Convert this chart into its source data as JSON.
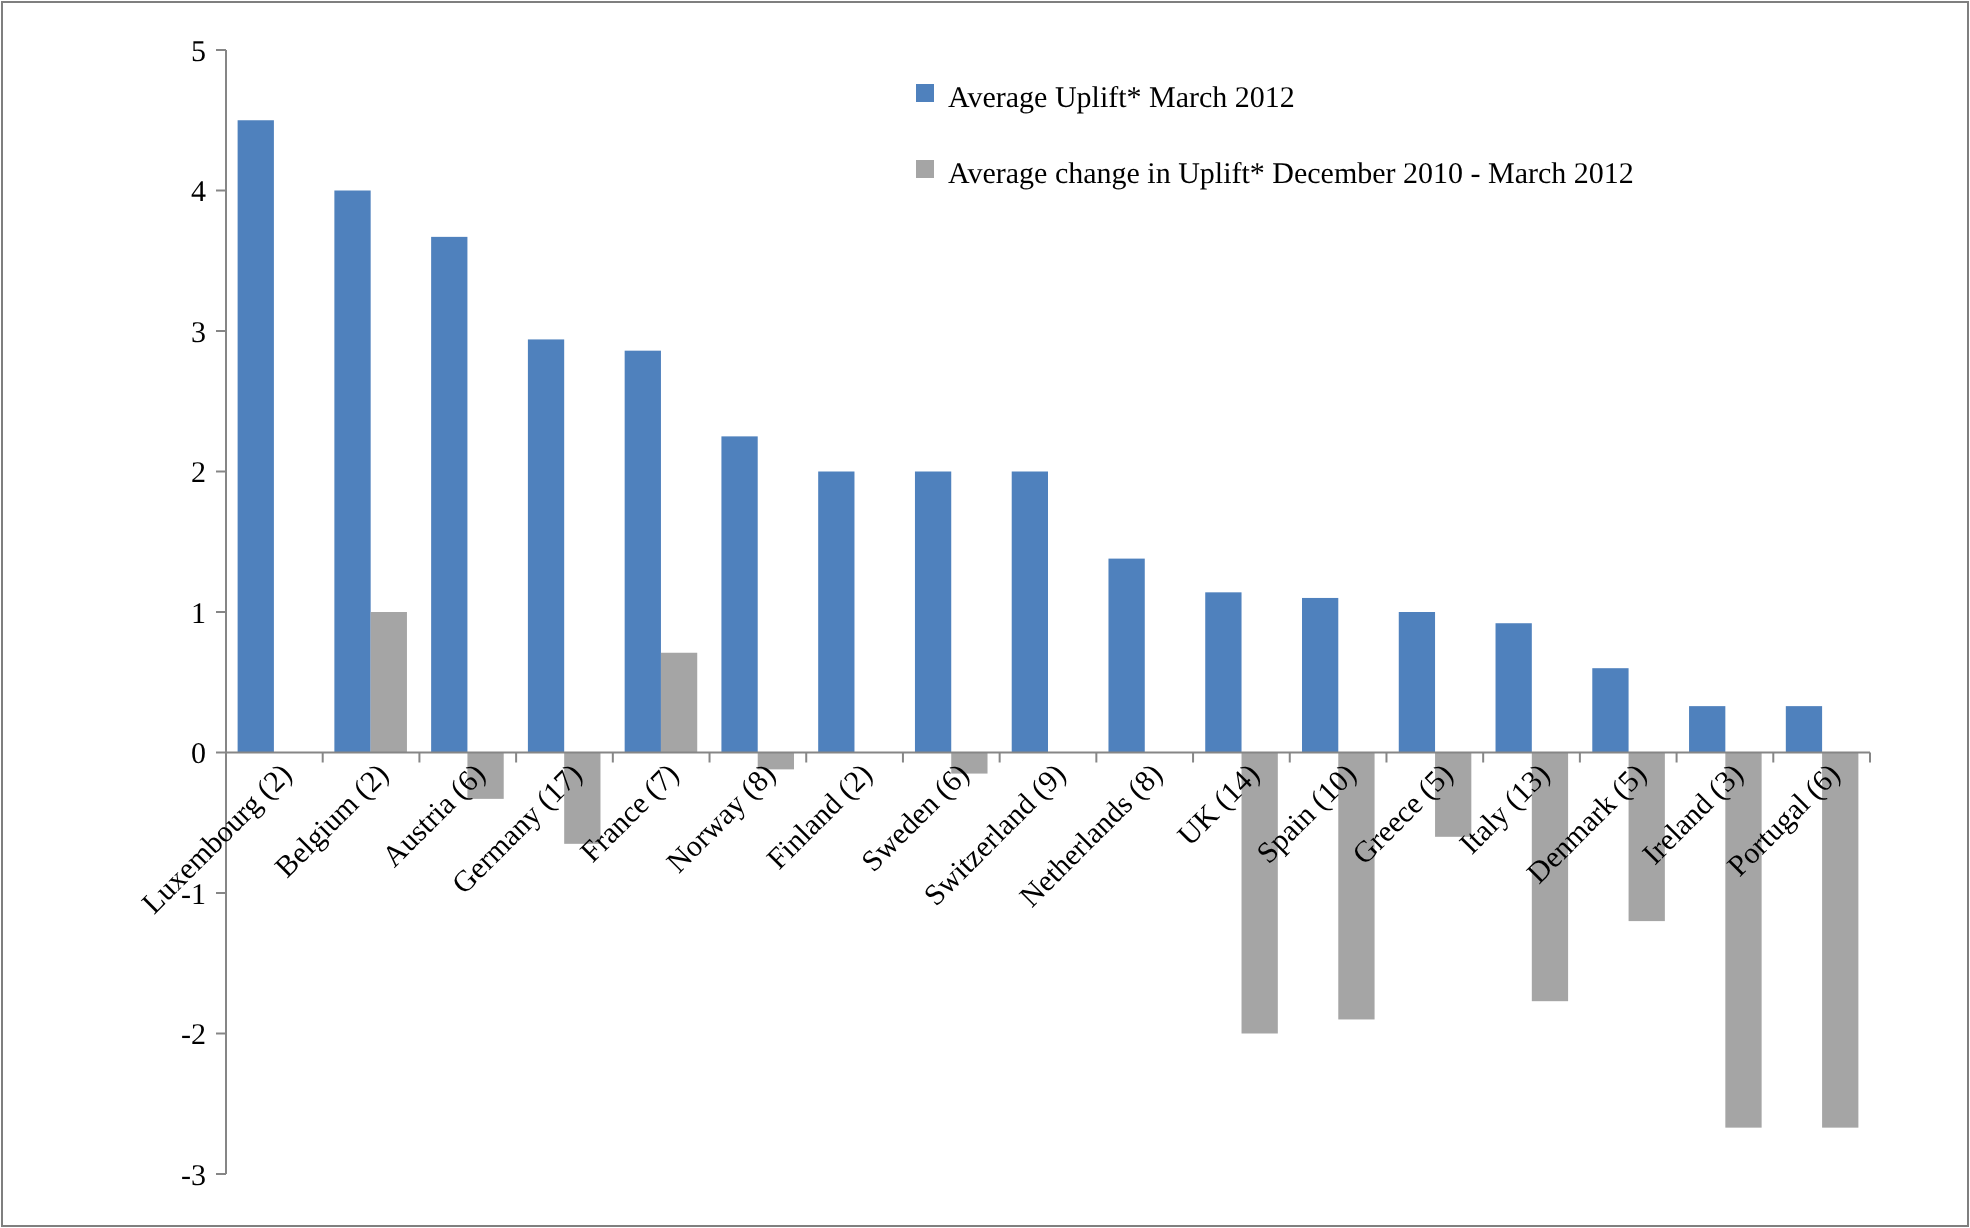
{
  "chart_data": {
    "type": "bar",
    "categories": [
      "Luxembourg (2)",
      "Belgium (2)",
      "Austria (6)",
      "Germany (17)",
      "France (7)",
      "Norway (8)",
      "Finland (2)",
      "Sweden (6)",
      "Switzerland (9)",
      "Netherlands (8)",
      "UK (14)",
      "Spain (10)",
      "Greece (5)",
      "Italy (13)",
      "Denmark (5)",
      "Ireland (3)",
      "Portugal (6)"
    ],
    "series": [
      {
        "name": "Average Uplift* March 2012",
        "color": "#4f81bd",
        "values": [
          4.5,
          4.0,
          3.67,
          2.94,
          2.86,
          2.25,
          2.0,
          2.0,
          2.0,
          1.38,
          1.14,
          1.1,
          1.0,
          0.92,
          0.6,
          0.33,
          0.33
        ]
      },
      {
        "name": "Average change in Uplift* December 2010 - March 2012",
        "color": "#a5a5a5",
        "values": [
          0,
          1.0,
          -0.33,
          -0.65,
          0.71,
          -0.12,
          0,
          -0.15,
          0,
          0,
          -2.0,
          -1.9,
          -0.6,
          -1.77,
          -1.2,
          -2.67,
          -2.67
        ]
      }
    ],
    "ylim": [
      -3,
      5
    ],
    "yticks": [
      -3,
      -2,
      -1,
      0,
      1,
      2,
      3,
      4,
      5
    ],
    "grid": false,
    "legend": "top right"
  }
}
